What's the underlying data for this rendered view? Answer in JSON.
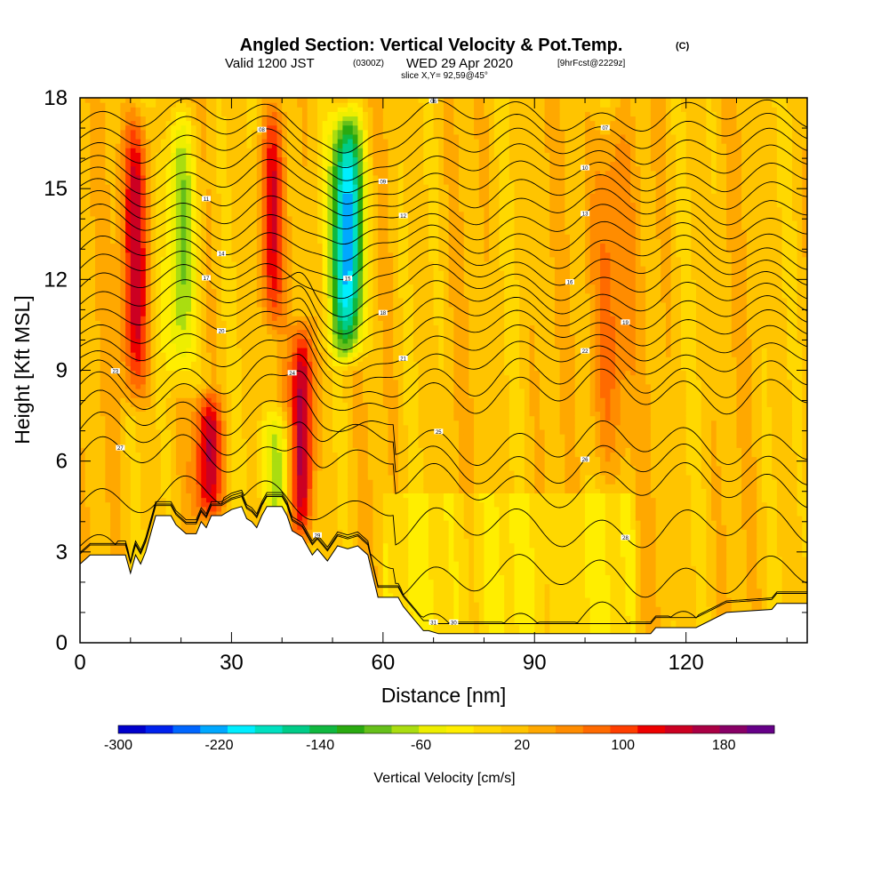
{
  "chart_data": {
    "type": "heatmap",
    "title": "Angled Section: Vertical Velocity & Pot.Temp.",
    "title_mark": "(C)",
    "subtitle": {
      "valid": "Valid 1200 JST",
      "utc": "(0300Z)",
      "date": "WED 29 Apr 2020",
      "forecast": "[9hrFcst@2229z]"
    },
    "slice": "slice X,Y= 92,59@45°",
    "xlabel": "Distance [nm]",
    "ylabel": "Height [Kft MSL]",
    "xlim": [
      0,
      144
    ],
    "ylim": [
      0,
      18
    ],
    "x_ticks": [
      0,
      30,
      60,
      90,
      120
    ],
    "y_ticks": [
      0,
      3,
      6,
      9,
      12,
      15,
      18
    ],
    "colorbar": {
      "label": "Vertical Velocity [cm/s]",
      "range": [
        -300,
        220
      ],
      "tick_labels": [
        -300,
        -220,
        -140,
        -60,
        20,
        100,
        180
      ],
      "colors": [
        "#0000cc",
        "#0022ee",
        "#0066ff",
        "#00a8ff",
        "#00eeff",
        "#00e0c0",
        "#00cc88",
        "#10b840",
        "#2aaa10",
        "#66c01a",
        "#aadd10",
        "#eeee00",
        "#ffee00",
        "#ffd800",
        "#ffc400",
        "#ffa800",
        "#ff8c00",
        "#ff6a00",
        "#ff3e00",
        "#ee0000",
        "#cc0022",
        "#aa0044",
        "#880066",
        "#660088"
      ]
    },
    "updrafts": [
      {
        "x": 11,
        "zbot": 7.5,
        "ztop": 18,
        "w": 140
      },
      {
        "x": 25.5,
        "zbot": 3.8,
        "ztop": 8.5,
        "w": 140
      },
      {
        "x": 44,
        "zbot": 3.0,
        "ztop": 11,
        "w": 160
      },
      {
        "x": 38,
        "zbot": 10,
        "ztop": 18,
        "w": 110
      },
      {
        "x": 105,
        "zbot": 5,
        "ztop": 18,
        "w": 70
      }
    ],
    "downdrafts": [
      {
        "x": 20,
        "zbot": 8,
        "ztop": 18,
        "w": -110
      },
      {
        "x": 53,
        "zbot": 9,
        "ztop": 18,
        "w": -250
      },
      {
        "x": 39,
        "zbot": 3.5,
        "ztop": 8,
        "w": -90
      }
    ],
    "terrain_kft": [
      [
        0,
        2.6
      ],
      [
        2,
        2.9
      ],
      [
        9,
        2.9
      ],
      [
        10,
        2.3
      ],
      [
        11,
        2.9
      ],
      [
        12,
        2.6
      ],
      [
        13,
        3.0
      ],
      [
        14,
        3.6
      ],
      [
        15,
        4.2
      ],
      [
        18,
        4.2
      ],
      [
        19,
        3.9
      ],
      [
        21,
        3.6
      ],
      [
        23,
        3.6
      ],
      [
        24,
        4.0
      ],
      [
        25,
        3.8
      ],
      [
        26,
        4.2
      ],
      [
        28,
        4.2
      ],
      [
        30,
        4.4
      ],
      [
        32,
        4.5
      ],
      [
        33,
        4.1
      ],
      [
        34,
        4.0
      ],
      [
        35,
        3.8
      ],
      [
        36,
        4.2
      ],
      [
        37,
        4.5
      ],
      [
        40,
        4.5
      ],
      [
        41,
        4.2
      ],
      [
        42,
        3.7
      ],
      [
        44,
        3.5
      ],
      [
        46,
        2.9
      ],
      [
        47,
        3.1
      ],
      [
        49,
        2.7
      ],
      [
        51,
        3.2
      ],
      [
        53,
        3.1
      ],
      [
        55,
        3.2
      ],
      [
        57,
        2.9
      ],
      [
        58,
        2.2
      ],
      [
        59,
        1.5
      ],
      [
        63,
        1.5
      ],
      [
        64,
        1.2
      ],
      [
        65,
        1.0
      ],
      [
        66,
        0.8
      ],
      [
        67,
        0.6
      ],
      [
        68,
        0.4
      ],
      [
        69,
        0.4
      ],
      [
        71,
        0.3
      ],
      [
        113,
        0.3
      ],
      [
        114,
        0.5
      ],
      [
        122,
        0.5
      ],
      [
        128,
        1.0
      ],
      [
        137,
        1.1
      ],
      [
        138,
        1.3
      ],
      [
        144,
        1.3
      ]
    ],
    "isentropes": [
      {
        "base": 0.6,
        "label": "31",
        "lx": 70
      },
      {
        "base": 1.6,
        "label": "30",
        "lx": 74
      },
      {
        "base": 3.2,
        "label": "29",
        "lx": 47
      },
      {
        "base": 4.8,
        "label": "28",
        "lx": 108
      },
      {
        "base": 6.2,
        "label": "27",
        "lx": 8
      },
      {
        "base": 6.9,
        "label": "26",
        "lx": 100
      },
      {
        "base": 7.6,
        "label": "25",
        "lx": 71
      },
      {
        "base": 8.3,
        "label": "24",
        "lx": 42
      },
      {
        "base": 8.8,
        "label": "23",
        "lx": 7
      },
      {
        "base": 9.4,
        "label": "22",
        "lx": 100
      },
      {
        "base": 9.9,
        "label": "21",
        "lx": 64
      },
      {
        "base": 10.4,
        "label": "20",
        "lx": 28
      },
      {
        "base": 10.9,
        "label": "19",
        "lx": 108
      },
      {
        "base": 11.4,
        "label": "18",
        "lx": 60
      },
      {
        "base": 11.9,
        "label": "17",
        "lx": 25
      },
      {
        "base": 12.4,
        "label": "16",
        "lx": 97
      },
      {
        "base": 12.9,
        "label": "15",
        "lx": 53
      },
      {
        "base": 13.4,
        "label": "14",
        "lx": 28
      },
      {
        "base": 13.9,
        "label": "13",
        "lx": 100
      },
      {
        "base": 14.4,
        "label": "12",
        "lx": 64
      },
      {
        "base": 14.9,
        "label": "11",
        "lx": 25
      },
      {
        "base": 15.4,
        "label": "10",
        "lx": 100
      },
      {
        "base": 15.9,
        "label": "09",
        "lx": 60
      },
      {
        "base": 16.4,
        "label": "08",
        "lx": 36
      },
      {
        "base": 16.9,
        "label": "07",
        "lx": 104
      },
      {
        "base": 17.4,
        "label": "06",
        "lx": 70
      }
    ]
  }
}
